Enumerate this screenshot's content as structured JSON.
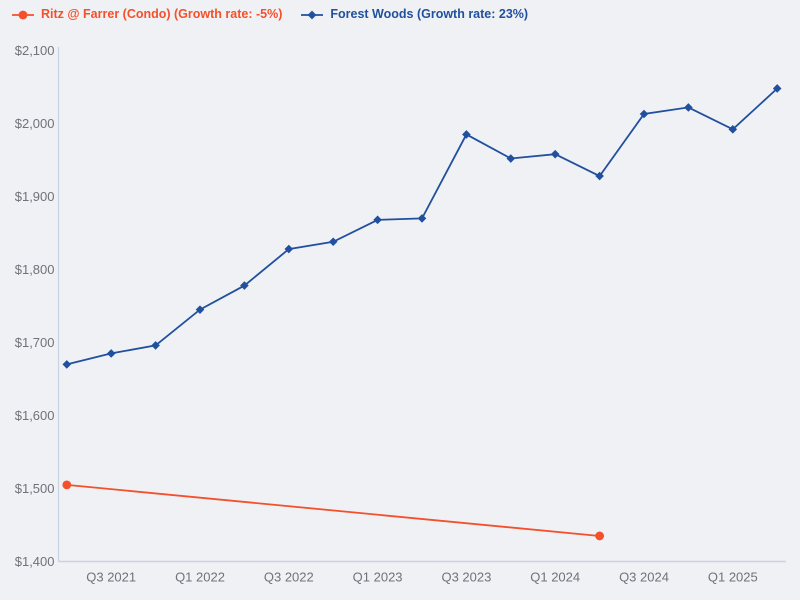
{
  "colors": {
    "background": "#f0f1f5",
    "axis_line": "#c7d2e4",
    "tick_label": "#6f7278",
    "ritz_orange": "#f4502b",
    "forest_blue": "#20509e"
  },
  "legend": {
    "position": "top-left",
    "items": [
      {
        "label": "Ritz @ Farrer (Condo) (Growth rate: -5%)",
        "marker": "circle-marker-icon",
        "color": "#f4502b"
      },
      {
        "label": "Forest Woods (Growth rate: 23%)",
        "marker": "diamond-marker-icon",
        "color": "#20509e"
      }
    ]
  },
  "chart_data": {
    "type": "line",
    "title": "",
    "xlabel": "",
    "ylabel": "",
    "grid": false,
    "legend_position": "top-left",
    "ylim": [
      1400,
      2100
    ],
    "y_tick_step": 100,
    "categories": [
      "Q2 2021",
      "Q3 2021",
      "Q4 2021",
      "Q1 2022",
      "Q2 2022",
      "Q3 2022",
      "Q4 2022",
      "Q1 2023",
      "Q2 2023",
      "Q3 2023",
      "Q4 2023",
      "Q1 2024",
      "Q2 2024",
      "Q3 2024",
      "Q4 2024",
      "Q1 2025",
      "Q2 2025"
    ],
    "x_tick_labels": [
      "Q3 2021",
      "Q1 2022",
      "Q3 2022",
      "Q1 2023",
      "Q3 2023",
      "Q1 2024",
      "Q3 2024",
      "Q1 2025"
    ],
    "y_ticks": [
      {
        "label": "$2,100",
        "value": 2100
      },
      {
        "label": "$2,000",
        "value": 2000
      },
      {
        "label": "$1,900",
        "value": 1900
      },
      {
        "label": "$1,800",
        "value": 1800
      },
      {
        "label": "$1,700",
        "value": 1700
      },
      {
        "label": "$1,600",
        "value": 1600
      },
      {
        "label": "$1,500",
        "value": 1500
      },
      {
        "label": "$1,400",
        "value": 1400
      }
    ],
    "series": [
      {
        "name": "Ritz @ Farrer (Condo)",
        "growth_rate": "-5%",
        "color": "#f4502b",
        "marker": "circle",
        "points": [
          {
            "quarter": "Q2 2021",
            "value": 1505
          },
          {
            "quarter": "Q2 2024",
            "value": 1435
          }
        ]
      },
      {
        "name": "Forest Woods",
        "growth_rate": "23%",
        "color": "#20509e",
        "marker": "diamond",
        "points": [
          {
            "quarter": "Q2 2021",
            "value": 1670
          },
          {
            "quarter": "Q3 2021",
            "value": 1685
          },
          {
            "quarter": "Q4 2021",
            "value": 1696
          },
          {
            "quarter": "Q1 2022",
            "value": 1745
          },
          {
            "quarter": "Q2 2022",
            "value": 1778
          },
          {
            "quarter": "Q3 2022",
            "value": 1828
          },
          {
            "quarter": "Q4 2022",
            "value": 1838
          },
          {
            "quarter": "Q1 2023",
            "value": 1868
          },
          {
            "quarter": "Q2 2023",
            "value": 1870
          },
          {
            "quarter": "Q3 2023",
            "value": 1985
          },
          {
            "quarter": "Q4 2023",
            "value": 1952
          },
          {
            "quarter": "Q1 2024",
            "value": 1958
          },
          {
            "quarter": "Q2 2024",
            "value": 1928
          },
          {
            "quarter": "Q3 2024",
            "value": 2013
          },
          {
            "quarter": "Q4 2024",
            "value": 2022
          },
          {
            "quarter": "Q1 2025",
            "value": 1992
          },
          {
            "quarter": "Q2 2025",
            "value": 2048
          }
        ]
      }
    ]
  }
}
